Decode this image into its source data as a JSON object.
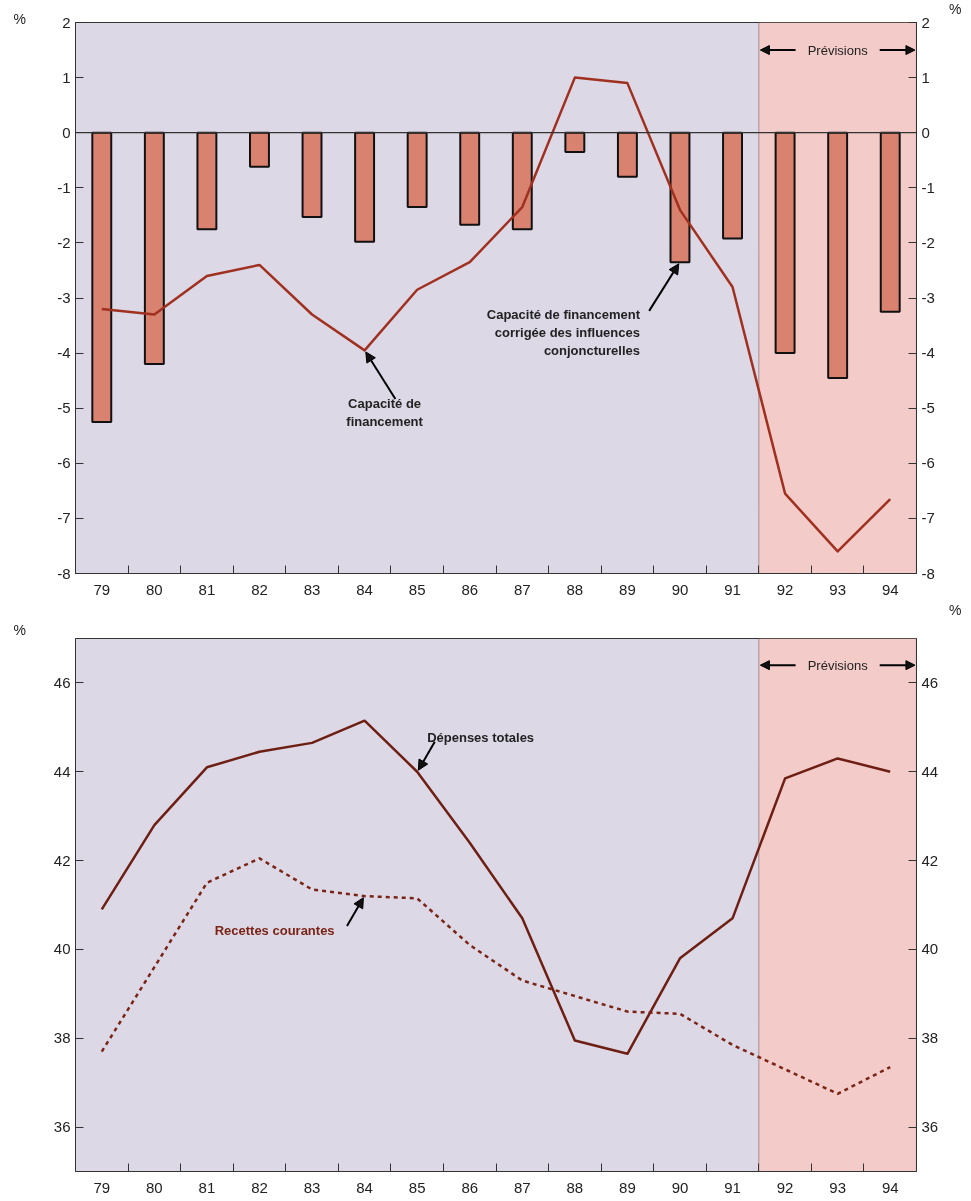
{
  "chart_data": [
    {
      "type": "bar",
      "ylabel": "%",
      "y2label": "%",
      "x": [
        79,
        80,
        81,
        82,
        83,
        84,
        85,
        86,
        87,
        88,
        89,
        90,
        91,
        92,
        93,
        94
      ],
      "xlim": [
        78.5,
        94.5
      ],
      "xticks": [
        79,
        80,
        81,
        82,
        83,
        84,
        85,
        86,
        87,
        88,
        89,
        90,
        91,
        92,
        93,
        94
      ],
      "ylim": [
        -8,
        2
      ],
      "yticks": [
        -8,
        -7,
        -6,
        -5,
        -4,
        -3,
        -2,
        -1,
        0,
        1,
        2
      ],
      "y2lim": [
        -8,
        2
      ],
      "y2ticks": [
        -8,
        -7,
        -6,
        -5,
        -4,
        -3,
        -2,
        -1,
        0,
        1,
        2
      ],
      "grid": false,
      "series": [
        {
          "type": "bar",
          "color": "#d9826f",
          "values": [
            -5.25,
            -4.2,
            -1.75,
            -0.62,
            -1.53,
            -1.98,
            -1.35,
            -1.67,
            -1.75,
            -0.35,
            -0.8,
            -2.35,
            -1.92,
            -4.0,
            -4.45,
            -3.25
          ]
        },
        {
          "type": "line",
          "color": "#a0301f",
          "values": [
            -3.2,
            -3.3,
            -2.6,
            -2.4,
            -3.3,
            -3.95,
            -2.85,
            -2.35,
            -1.35,
            1.0,
            0.9,
            -1.4,
            -2.8,
            -6.55,
            -7.6,
            -6.65
          ]
        }
      ],
      "ref_lines": [
        {
          "axis": "y",
          "value": 0,
          "color": "#333333"
        }
      ],
      "bands": [
        {
          "axis": "x",
          "from": 91.5,
          "to": 94.5,
          "label": "Prévisions",
          "color": "#f3cbc8"
        }
      ],
      "annotations": [
        {
          "text": "Capacité de\nfinancement",
          "x": 84,
          "y": -3.95
        },
        {
          "text": "Capacité de financement\ncorrigée des influences\nconjoncturelles",
          "x": 90,
          "y": -2.35
        }
      ]
    },
    {
      "type": "line",
      "ylabel": "%",
      "y2label": "%",
      "x": [
        79,
        80,
        81,
        82,
        83,
        84,
        85,
        86,
        87,
        88,
        89,
        90,
        91,
        92,
        93,
        94
      ],
      "xlim": [
        78.5,
        94.5
      ],
      "xticks": [
        79,
        80,
        81,
        82,
        83,
        84,
        85,
        86,
        87,
        88,
        89,
        90,
        91,
        92,
        93,
        94
      ],
      "ylim": [
        35,
        47
      ],
      "yticks": [
        36,
        38,
        40,
        42,
        44,
        46
      ],
      "y2lim": [
        35,
        47
      ],
      "y2ticks": [
        36,
        38,
        40,
        42,
        44,
        46
      ],
      "grid": false,
      "series": [
        {
          "color": "#6e1f14",
          "line_style": "solid",
          "values": [
            40.9,
            42.8,
            44.1,
            44.45,
            44.65,
            45.15,
            44.0,
            42.4,
            40.7,
            37.95,
            37.65,
            39.8,
            40.7,
            43.85,
            44.3,
            44.0
          ]
        },
        {
          "color": "#7a2416",
          "line_style": "dotted",
          "values": [
            37.7,
            39.6,
            41.5,
            42.05,
            41.35,
            41.2,
            41.15,
            40.1,
            39.3,
            38.95,
            38.6,
            38.55,
            37.85,
            37.3,
            36.75,
            37.35
          ]
        }
      ],
      "bands": [
        {
          "axis": "x",
          "from": 91.5,
          "to": 94.5,
          "label": "Prévisions",
          "color": "#f3cbc8"
        }
      ],
      "annotations": [
        {
          "text": "Dépenses totales",
          "x": 85,
          "y": 44.0
        },
        {
          "text": "Recettes courantes",
          "x": 84,
          "y": 41.2
        }
      ]
    }
  ]
}
